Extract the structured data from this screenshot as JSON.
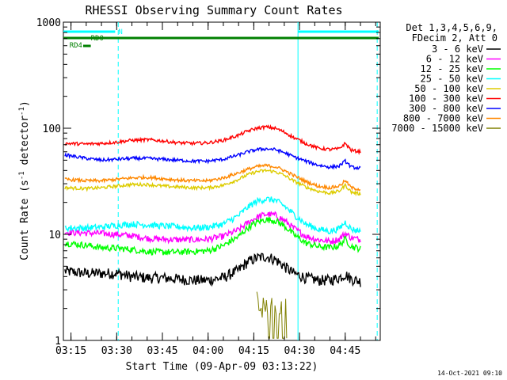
{
  "chart_data": {
    "type": "line",
    "title": "RHESSI Observing Summary Count Rates",
    "xlabel": "Start Time (09-Apr-09 03:13:22)",
    "ylabel_main": "Count Rate (s",
    "ylabel_sup1": "-1",
    "ylabel_mid": " detector",
    "ylabel_sup2": "-1",
    "ylabel_end": ")",
    "y_scale": "log",
    "ylim": [
      1,
      1000
    ],
    "xlim_minutes": [
      192.5,
      296.5
    ],
    "x_ticks": [
      {
        "t": 195,
        "label": "03:15"
      },
      {
        "t": 210,
        "label": "03:30"
      },
      {
        "t": 225,
        "label": "03:45"
      },
      {
        "t": 240,
        "label": "04:00"
      },
      {
        "t": 255,
        "label": "04:15"
      },
      {
        "t": 270,
        "label": "04:30"
      },
      {
        "t": 285,
        "label": "04:45"
      }
    ],
    "y_ticks": [
      {
        "v": 1,
        "label": "1"
      },
      {
        "v": 10,
        "label": "10"
      },
      {
        "v": 100,
        "label": "100"
      },
      {
        "v": 1000,
        "label": "1000"
      }
    ],
    "legend_header": [
      "Det 1,3,4,5,6,9,",
      "FDecim 2, Att 0"
    ],
    "timestamp": "14-Oct-2021 09:10",
    "series": [
      {
        "name": "3 - 6 keV",
        "color": "#000000",
        "x": [
          193,
          200,
          205,
          210,
          215,
          220,
          225,
          230,
          235,
          240,
          245,
          250,
          253,
          256,
          259,
          262,
          265,
          268,
          272,
          276,
          280,
          283,
          285,
          287,
          290
        ],
        "values": [
          4.5,
          4.3,
          4.3,
          4.3,
          4.0,
          3.9,
          3.9,
          3.8,
          3.7,
          3.7,
          3.9,
          4.6,
          5.5,
          6.0,
          6.2,
          5.8,
          5.0,
          4.3,
          3.9,
          3.7,
          3.7,
          3.9,
          4.2,
          3.8,
          3.6
        ]
      },
      {
        "name": "6 - 12 keV",
        "color": "#ff00ff",
        "x": [
          193,
          200,
          205,
          210,
          215,
          220,
          225,
          230,
          235,
          240,
          245,
          250,
          253,
          256,
          259,
          262,
          265,
          268,
          272,
          276,
          280,
          283,
          285,
          287,
          290
        ],
        "values": [
          10.5,
          10.3,
          10.2,
          10.0,
          9.7,
          9.2,
          9.0,
          8.9,
          8.9,
          9.0,
          9.6,
          11.0,
          12.8,
          14.5,
          15.5,
          15.2,
          13.5,
          11.5,
          9.6,
          8.9,
          8.6,
          9.0,
          10.2,
          9.3,
          8.9
        ]
      },
      {
        "name": "12 - 25 keV",
        "color": "#00ff00",
        "x": [
          193,
          200,
          205,
          210,
          215,
          220,
          225,
          230,
          235,
          240,
          245,
          250,
          253,
          256,
          259,
          262,
          265,
          268,
          272,
          276,
          280,
          283,
          285,
          287,
          290
        ],
        "values": [
          8.3,
          7.9,
          7.5,
          7.4,
          7.2,
          6.9,
          6.8,
          6.8,
          6.9,
          7.0,
          7.8,
          9.5,
          11.5,
          13.0,
          13.8,
          13.5,
          12.0,
          10.0,
          8.3,
          7.7,
          7.5,
          7.8,
          9.0,
          7.7,
          7.3
        ]
      },
      {
        "name": "25 - 50 keV",
        "color": "#00ffff",
        "x": [
          193,
          200,
          205,
          210,
          215,
          220,
          225,
          230,
          235,
          240,
          245,
          250,
          253,
          256,
          259,
          262,
          265,
          268,
          272,
          276,
          280,
          283,
          285,
          287,
          290
        ],
        "values": [
          11.5,
          11.5,
          11.7,
          12.2,
          12.5,
          12.3,
          12.0,
          11.8,
          11.5,
          11.7,
          12.5,
          15.0,
          18.0,
          20.5,
          21.5,
          21.0,
          18.5,
          15.5,
          12.5,
          11.2,
          10.7,
          11.3,
          13.0,
          11.2,
          10.8
        ]
      },
      {
        "name": "50 - 100 keV",
        "color": "#ddcc00",
        "x": [
          193,
          200,
          205,
          210,
          215,
          220,
          225,
          230,
          235,
          240,
          245,
          250,
          253,
          256,
          259,
          262,
          265,
          268,
          272,
          276,
          280,
          283,
          285,
          287,
          290
        ],
        "values": [
          27.5,
          27.0,
          27.5,
          28.5,
          29.5,
          29.5,
          28.5,
          28.0,
          27.5,
          27.5,
          29.0,
          33.0,
          36.5,
          39.0,
          40.0,
          39.0,
          36.0,
          32.0,
          28.0,
          25.5,
          24.5,
          25.5,
          29.0,
          25.0,
          24.0
        ]
      },
      {
        "name": "100 - 300 keV",
        "color": "#ff0000",
        "x": [
          193,
          200,
          205,
          210,
          215,
          220,
          225,
          230,
          235,
          240,
          245,
          250,
          253,
          256,
          259,
          262,
          265,
          268,
          272,
          276,
          280,
          283,
          285,
          287,
          290
        ],
        "values": [
          72,
          71,
          72,
          74,
          77,
          78,
          76,
          73,
          72,
          73,
          77,
          86,
          94,
          100,
          103,
          100,
          92,
          82,
          72,
          65,
          63,
          64,
          72,
          62,
          60
        ]
      },
      {
        "name": "300 - 800 keV",
        "color": "#0000ff",
        "x": [
          193,
          200,
          205,
          210,
          215,
          220,
          225,
          230,
          235,
          240,
          245,
          250,
          253,
          256,
          259,
          262,
          265,
          268,
          272,
          276,
          280,
          283,
          285,
          287,
          290
        ],
        "values": [
          56,
          52,
          50,
          51,
          52,
          52,
          51,
          50,
          49,
          49,
          51,
          56,
          60,
          63,
          64,
          63,
          59,
          54,
          49,
          45,
          43,
          44,
          49,
          43,
          42
        ]
      },
      {
        "name": "800 - 7000 keV",
        "color": "#ff8800",
        "x": [
          193,
          200,
          205,
          210,
          215,
          220,
          225,
          230,
          235,
          240,
          245,
          250,
          253,
          256,
          259,
          262,
          265,
          268,
          272,
          276,
          280,
          283,
          285,
          287,
          290
        ],
        "values": [
          33,
          32,
          32,
          33,
          34,
          34.5,
          33.5,
          32.5,
          32,
          32,
          34,
          38,
          41,
          43.5,
          44.5,
          43.5,
          40,
          36,
          31.5,
          28.5,
          27.5,
          28.5,
          32,
          27.5,
          26.5
        ]
      },
      {
        "name": "7000 - 15000 keV",
        "color": "#808000",
        "x": [
          256,
          258,
          260,
          262,
          264,
          266
        ],
        "values": [
          1.5,
          1.6,
          1.55,
          1.6,
          1.5,
          1.55
        ]
      }
    ],
    "flag_bars": [
      {
        "label": "N",
        "color": "#00ffff",
        "segments": [
          [
            192.5,
            209.5
          ],
          [
            269.5,
            296
          ]
        ],
        "level": 1
      },
      {
        "label": "RD0",
        "color": "#008000",
        "segments": [
          [
            192.5,
            296
          ]
        ],
        "level": 2
      },
      {
        "label": "RD4",
        "color": "#008000",
        "segments": [
          [
            199,
            201.5
          ]
        ],
        "level": 3
      }
    ],
    "vlines": [
      {
        "t": 210.5,
        "style": "dashed",
        "color": "#00ffff"
      },
      {
        "t": 269.5,
        "style": "solid",
        "color": "#00ffff"
      },
      {
        "t": 295.5,
        "style": "dashed",
        "color": "#00ffff"
      }
    ]
  }
}
